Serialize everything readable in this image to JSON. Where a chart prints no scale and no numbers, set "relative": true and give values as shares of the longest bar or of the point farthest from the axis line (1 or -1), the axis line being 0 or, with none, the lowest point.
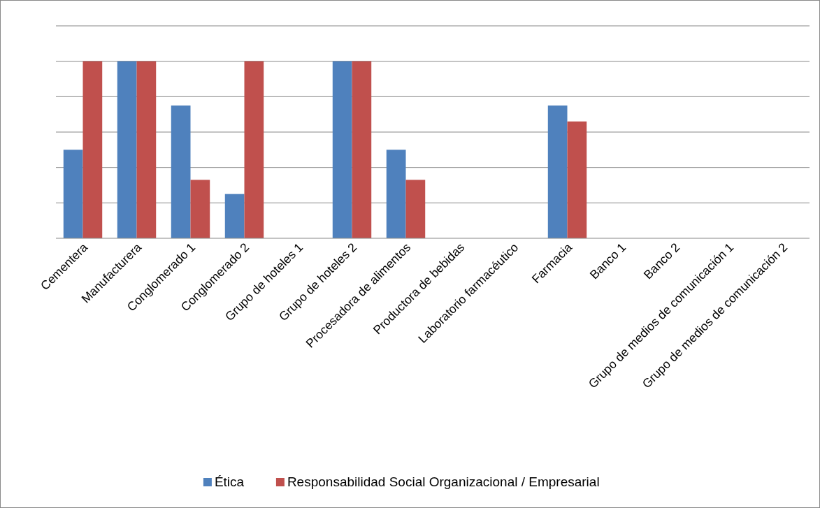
{
  "chart_data": {
    "type": "bar",
    "relative": true,
    "grid": true,
    "legend": "bottom",
    "categories": [
      "Cementera",
      "Manufacturera",
      "Conglomerado 1",
      "Conglomerado 2",
      "Grupo de hoteles 1",
      "Grupo de hoteles 2",
      "Procesadora de alimentos",
      "Productora de bebidas",
      "Laboratorio farmacéutico",
      "Farmacia",
      "Banco 1",
      "Banco 2",
      "Grupo de medios de comunicación 1",
      "Grupo de medios de comunicación 2"
    ],
    "series": [
      {
        "name": "Ética",
        "color": "#4f81bd",
        "values": [
          0.5,
          1,
          0.75,
          0.25,
          0,
          1,
          0.5,
          0,
          0,
          0.75,
          0,
          0,
          0,
          0
        ]
      },
      {
        "name": "Responsabilidad Social Organizacional / Empresarial",
        "color": "#c0504d",
        "values": [
          1,
          1,
          0.33,
          1,
          0,
          1,
          0.33,
          0,
          0,
          0.66,
          0,
          0,
          0,
          0
        ]
      }
    ]
  }
}
